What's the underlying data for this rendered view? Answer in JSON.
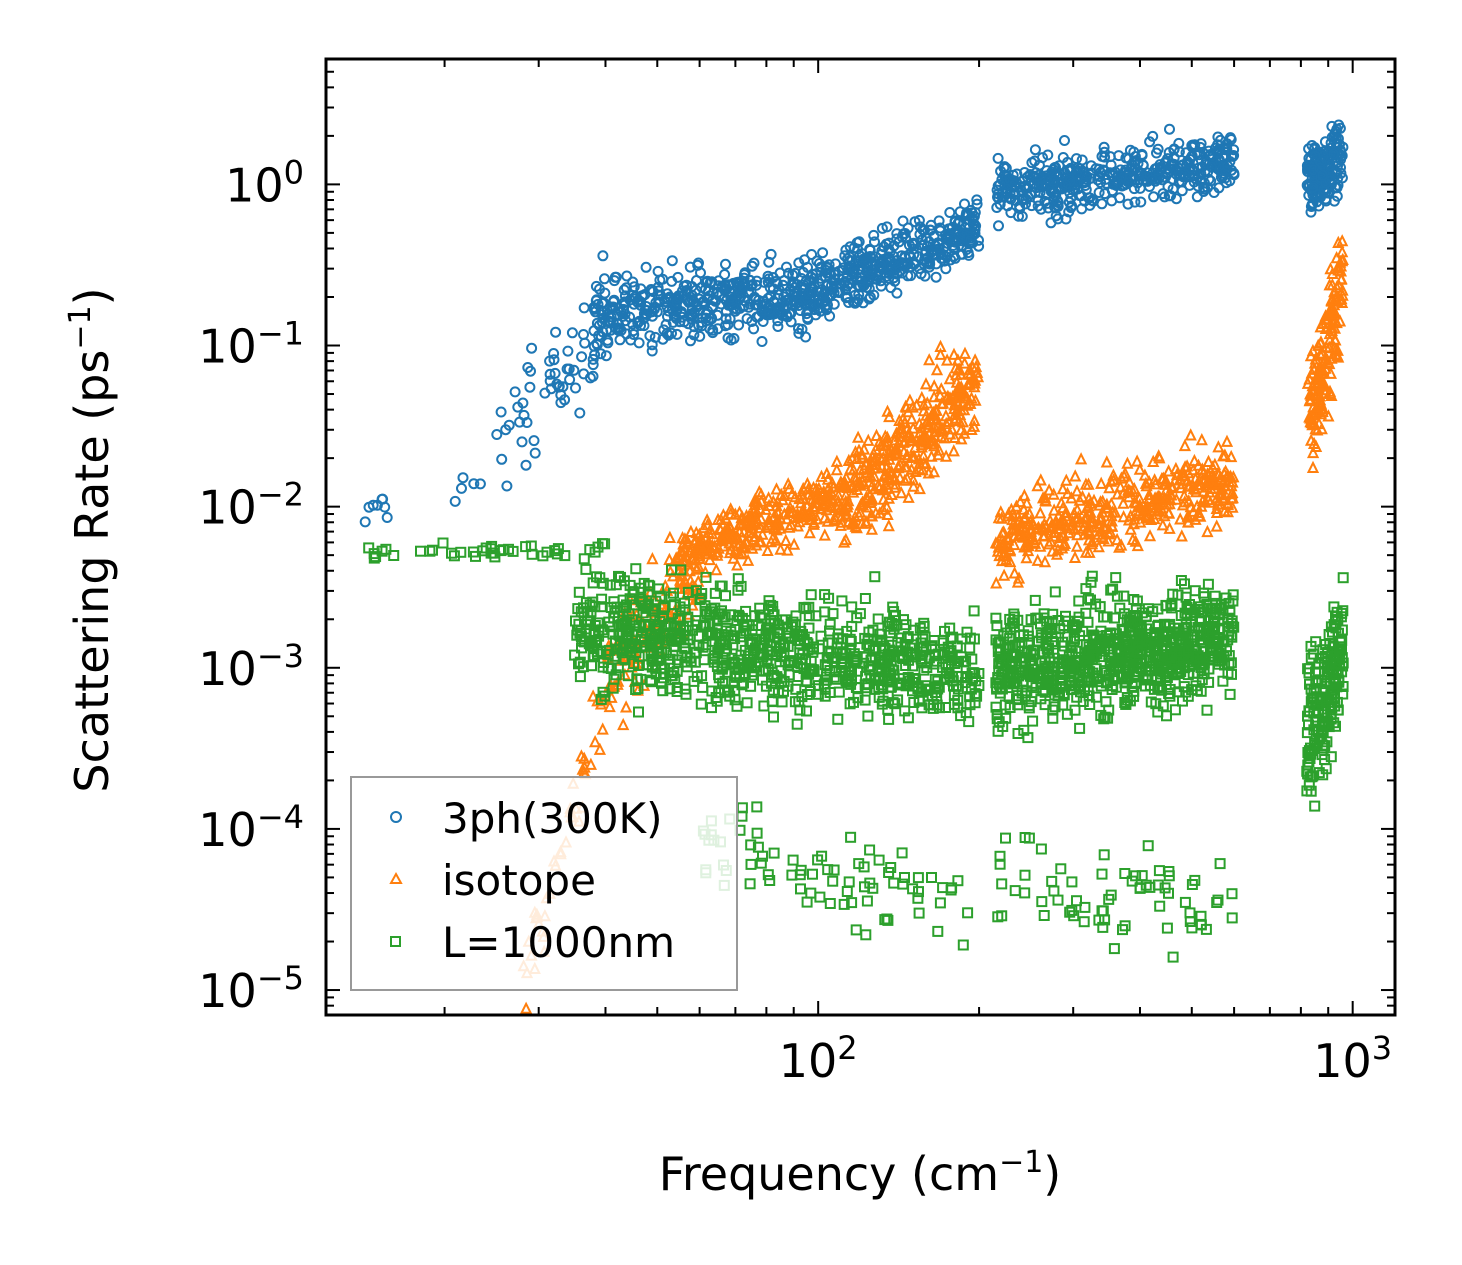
{
  "chart_data": {
    "type": "scatter",
    "xscale": "log",
    "yscale": "log",
    "xlim": [
      12,
      1200
    ],
    "ylim": [
      7e-06,
      6
    ],
    "xlabel": "Frequency (cm⁻¹)",
    "ylabel": "Scattering Rate (ps⁻¹)",
    "xlabel_main": "Frequency (cm",
    "xlabel_exp": "−1",
    "xlabel_close": ")",
    "ylabel_main": "Scattering Rate (ps",
    "ylabel_exp": "−1",
    "ylabel_close": ")",
    "x_ticks": [
      {
        "value": 100,
        "base": "10",
        "exp": "2"
      },
      {
        "value": 1000,
        "base": "10",
        "exp": "3"
      }
    ],
    "y_ticks": [
      {
        "value": 1,
        "base": "10",
        "exp": "0"
      },
      {
        "value": 0.1,
        "base": "10",
        "exp": "−1"
      },
      {
        "value": 0.01,
        "base": "10",
        "exp": "−2"
      },
      {
        "value": 0.001,
        "base": "10",
        "exp": "−3"
      },
      {
        "value": 0.0001,
        "base": "10",
        "exp": "−4"
      },
      {
        "value": 1e-05,
        "base": "10",
        "exp": "−5"
      }
    ],
    "legend_position": "bottom-left",
    "series": [
      {
        "name": "3ph(300K)",
        "marker": "circle",
        "color": "#1f77b4",
        "segments": [
          {
            "x0": 14,
            "x1": 16,
            "y0": 0.008,
            "y1": 0.011,
            "n": 8,
            "spread": 0.1
          },
          {
            "x0": 20,
            "x1": 24,
            "y0": 0.012,
            "y1": 0.016,
            "n": 5,
            "spread": 0.1
          },
          {
            "x0": 25,
            "x1": 40,
            "y0": 0.02,
            "y1": 0.15,
            "n": 60,
            "spread": 0.35
          },
          {
            "x0": 38,
            "x1": 100,
            "y0": 0.15,
            "y1": 0.22,
            "n": 450,
            "spread": 0.22
          },
          {
            "x0": 100,
            "x1": 200,
            "y0": 0.22,
            "y1": 0.55,
            "n": 350,
            "spread": 0.18
          },
          {
            "x0": 215,
            "x1": 600,
            "y0": 0.9,
            "y1": 1.4,
            "n": 450,
            "spread": 0.18
          },
          {
            "x0": 820,
            "x1": 960,
            "y0": 1.0,
            "y1": 1.6,
            "n": 160,
            "spread": 0.22
          }
        ]
      },
      {
        "name": "isotope",
        "marker": "triangle",
        "color": "#ff7f0e",
        "segments": [
          {
            "x0": 28,
            "x1": 40,
            "y0": 1e-05,
            "y1": 0.0006,
            "n": 45,
            "spread": 0.25
          },
          {
            "x0": 40,
            "x1": 60,
            "y0": 0.0008,
            "y1": 0.004,
            "n": 120,
            "spread": 0.3
          },
          {
            "x0": 55,
            "x1": 110,
            "y0": 0.005,
            "y1": 0.012,
            "n": 300,
            "spread": 0.18
          },
          {
            "x0": 110,
            "x1": 200,
            "y0": 0.01,
            "y1": 0.06,
            "n": 350,
            "spread": 0.3
          },
          {
            "x0": 215,
            "x1": 600,
            "y0": 0.006,
            "y1": 0.015,
            "n": 450,
            "spread": 0.25
          },
          {
            "x0": 820,
            "x1": 960,
            "y0": 0.03,
            "y1": 0.25,
            "n": 160,
            "spread": 0.35
          }
        ]
      },
      {
        "name": "L=1000nm",
        "marker": "square",
        "color": "#2ca02c",
        "segments": [
          {
            "x0": 14,
            "x1": 40,
            "y0": 0.0052,
            "y1": 0.0055,
            "n": 40,
            "spread": 0.05
          },
          {
            "x0": 35,
            "x1": 200,
            "y0": 0.0018,
            "y1": 0.0009,
            "n": 900,
            "spread": 0.35
          },
          {
            "x0": 60,
            "x1": 200,
            "y0": 8e-05,
            "y1": 3e-05,
            "n": 80,
            "spread": 0.3
          },
          {
            "x0": 215,
            "x1": 600,
            "y0": 0.001,
            "y1": 0.0015,
            "n": 800,
            "spread": 0.35
          },
          {
            "x0": 215,
            "x1": 600,
            "y0": 5e-05,
            "y1": 3e-05,
            "n": 70,
            "spread": 0.3
          },
          {
            "x0": 820,
            "x1": 960,
            "y0": 0.0004,
            "y1": 0.0012,
            "n": 180,
            "spread": 0.45
          }
        ]
      }
    ]
  }
}
